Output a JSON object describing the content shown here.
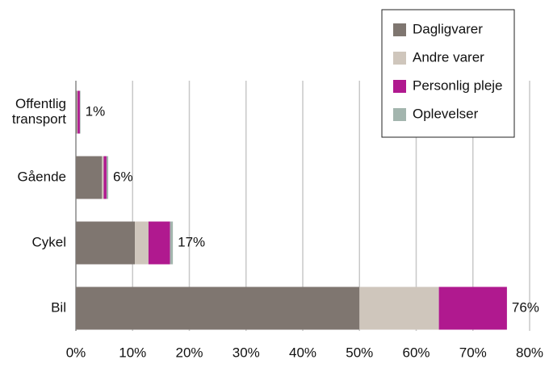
{
  "chart_data": {
    "type": "stacked_barh",
    "categories": [
      [
        "Offentlig",
        "transport"
      ],
      "Gående",
      "Cykel",
      "Bil"
    ],
    "series": [
      {
        "name": "Dagligvarer",
        "color": "#7f7670",
        "values": [
          0.2,
          4.6,
          10.4,
          50
        ]
      },
      {
        "name": "Andre varer",
        "color": "#cfc6bc",
        "values": [
          0.1,
          0.3,
          2.4,
          14
        ]
      },
      {
        "name": "Personlig pleje",
        "color": "#b0198f",
        "values": [
          0.4,
          0.5,
          3.8,
          12
        ]
      },
      {
        "name": "Oplevelser",
        "color": "#a3b5ae",
        "values": [
          0.1,
          0.3,
          0.5,
          0
        ]
      }
    ],
    "value_labels": [
      "1%",
      "6%",
      "17%",
      "76%"
    ],
    "xlim": [
      0,
      80
    ],
    "xticks": [
      {
        "value": 0,
        "label": "0%"
      },
      {
        "value": 10,
        "label": "10%"
      },
      {
        "value": 20,
        "label": "20%"
      },
      {
        "value": 30,
        "label": "30%"
      },
      {
        "value": 40,
        "label": "40%"
      },
      {
        "value": 50,
        "label": "50%"
      },
      {
        "value": 60,
        "label": "60%"
      },
      {
        "value": 70,
        "label": "70%"
      },
      {
        "value": 80,
        "label": "80%"
      }
    ],
    "grid": true,
    "legend": "top-right"
  }
}
